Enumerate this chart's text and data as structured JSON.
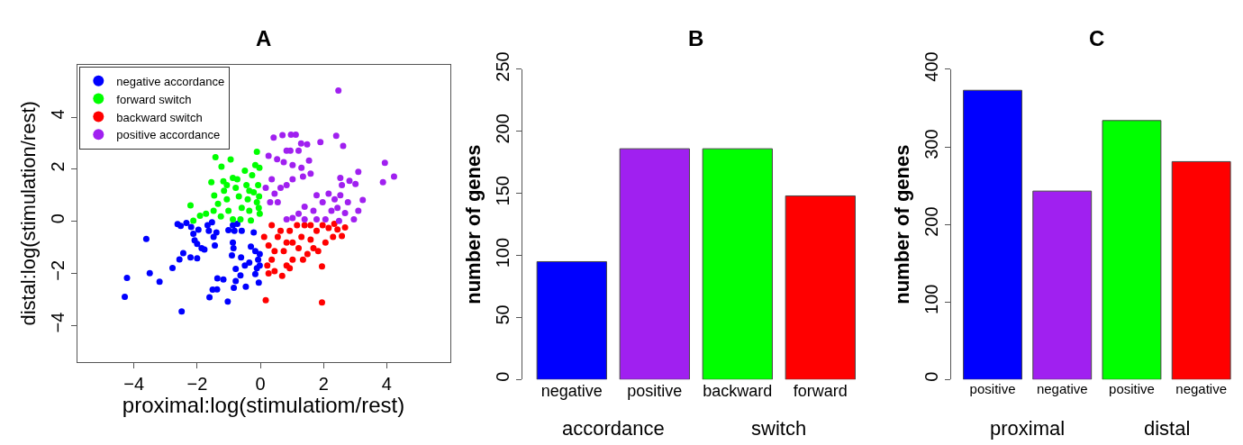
{
  "chart_data": [
    {
      "type": "scatter",
      "title": "A",
      "xlabel": "proximal:log(stimulatiom/rest)",
      "ylabel": "distal:log(stimulation/rest)",
      "xlim": [
        -5.8,
        6.0
      ],
      "ylim": [
        -5.4,
        6.0
      ],
      "xticks": [
        -4,
        -2,
        0,
        2,
        4
      ],
      "yticks": [
        -4,
        -2,
        0,
        2,
        4
      ],
      "legend": "top left",
      "marker": "circle",
      "series": [
        {
          "name": "negative accordance",
          "color": "#0000ff",
          "x": [
            -4.29,
            -4.22,
            -3.61,
            -3.5,
            -3.19,
            -2.78,
            -2.56,
            -2.49,
            -2.44,
            -2.21,
            -2.0,
            -2.62,
            -2.52,
            -2.34,
            -2.19,
            -2.12,
            -2.08,
            -1.96,
            -2.0,
            -1.86,
            -1.77,
            -1.67,
            -1.63,
            -1.53,
            -1.48,
            -1.44,
            -1.39,
            -1.61,
            -1.51,
            -1.37,
            -1.36,
            -1.17,
            -1.03,
            -1.01,
            -0.87,
            -0.82,
            -0.73,
            -0.59,
            -0.87,
            -0.85,
            -0.9,
            -0.78,
            -0.63,
            -0.78,
            -0.84,
            -0.46,
            -0.61,
            -0.49,
            -0.35,
            -0.3,
            -0.21,
            -0.16,
            -0.11,
            -0.07,
            -0.16,
            -0.05,
            -0.02,
            -0.02
          ],
          "values": [
            -2.91,
            -2.18,
            -0.68,
            -2.0,
            -2.33,
            -1.8,
            -1.47,
            -3.47,
            -1.23,
            -1.39,
            -1.43,
            -0.11,
            -0.18,
            -0.07,
            -0.22,
            -0.48,
            -0.73,
            -0.33,
            -0.87,
            -1.04,
            -1.09,
            -0.15,
            -0.37,
            -0.04,
            -0.6,
            -0.93,
            -0.43,
            -2.92,
            -2.63,
            -2.62,
            -2.2,
            -2.24,
            -3.09,
            -0.34,
            -0.15,
            -0.37,
            -0.1,
            -0.37,
            -0.82,
            -1.04,
            -1.31,
            -1.83,
            -2.08,
            -2.3,
            -2.56,
            -2.52,
            -1.39,
            -1.7,
            -1.59,
            -0.98,
            -0.43,
            -1.15,
            -1.81,
            -1.48,
            -2.03,
            -2.36,
            -1.7,
            -1.26
          ]
        },
        {
          "name": "forward switch",
          "color": "#00ff00",
          "x": [
            -2.21,
            -2.12,
            -1.91,
            -1.72,
            -1.55,
            -1.42,
            -1.23,
            -1.17,
            -0.94,
            -1.46,
            -1.34,
            -1.15,
            -1.06,
            -1.01,
            -0.87,
            -0.78,
            -0.68,
            -0.59,
            -0.63,
            -0.49,
            -0.44,
            -0.4,
            -0.35,
            -0.3,
            -0.26,
            -0.21,
            -0.16,
            -0.11,
            -0.11,
            -0.07,
            -0.02,
            -0.03,
            -0.04,
            -0.05,
            -0.87,
            -1.25,
            -1.48,
            -0.73,
            -0.35,
            -1.06
          ],
          "values": [
            0.61,
            0.02,
            0.21,
            0.29,
            1.5,
            2.46,
            2.1,
            1.53,
            2.37,
            0.99,
            0.67,
            1.17,
            0.84,
            0.4,
            1.66,
            1.28,
            0.95,
            0.51,
            0.07,
            1.94,
            1.39,
            0.84,
            0.4,
            0.03,
            1.77,
            1.11,
            2.16,
            2.67,
            0.73,
            1.39,
            0.29,
            2.05,
            0.95,
            0.51,
            0.07,
            0.18,
            0.4,
            1.61,
            1.17,
            1.39
          ]
        },
        {
          "name": "backward switch",
          "color": "#ff0000",
          "x": [
            0.17,
            1.95,
            0.12,
            0.26,
            0.36,
            0.45,
            0.69,
            0.83,
            0.55,
            0.74,
            0.93,
            1.02,
            1.21,
            1.3,
            1.4,
            1.49,
            1.59,
            1.78,
            1.83,
            1.95,
            2.06,
            2.16,
            2.3,
            2.44,
            2.58,
            2.68,
            1.97,
            1.59,
            1.02,
            0.36,
            0.22,
            0.45,
            0.83,
            1.16,
            1.35,
            1.68,
            0.64,
            0.93,
            0.26,
            2.34
          ],
          "values": [
            -3.04,
            -3.12,
            -0.6,
            -0.93,
            -1.48,
            -1.92,
            -2.1,
            -1.7,
            -0.6,
            -1.15,
            -0.37,
            -1.48,
            -1.04,
            -0.6,
            -0.15,
            -1.26,
            -0.71,
            -0.37,
            -1.15,
            -1.74,
            -0.82,
            -0.26,
            -0.6,
            -0.32,
            -0.57,
            -0.24,
            -0.15,
            -0.15,
            -0.82,
            -0.15,
            -1.7,
            -1.15,
            -0.82,
            -0.15,
            -1.48,
            -1.04,
            -0.37,
            -1.81,
            -2.01,
            -0.1
          ]
        },
        {
          "name": "positive accordance",
          "color": "#a020f0",
          "x": [
            2.47,
            0.42,
            0.7,
            0.97,
            1.12,
            1.29,
            1.48,
            1.9,
            2.4,
            2.62,
            0.26,
            0.53,
            0.83,
            0.95,
            1.21,
            0.74,
            1.02,
            1.3,
            1.54,
            1.59,
            1.35,
            0.17,
            0.36,
            0.45,
            0.64,
            0.83,
            1.02,
            0.55,
            0.31,
            3.94,
            4.23,
            3.88,
            3.1,
            2.82,
            2.53,
            2.58,
            3.24,
            2.77,
            3.1,
            2.96,
            2.68,
            2.44,
            2.35,
            2.16,
            1.97,
            1.78,
            1.68,
            1.4,
            1.21,
            1.02,
            0.83,
            1.4,
            1.78,
            2.06,
            2.49,
            2.25,
            2.53,
            3.01
          ],
          "values": [
            5.02,
            3.21,
            3.31,
            3.33,
            3.33,
            2.99,
            2.95,
            3.04,
            3.28,
            2.89,
            2.51,
            2.38,
            2.71,
            2.71,
            2.71,
            2.27,
            2.16,
            2.05,
            2.33,
            1.83,
            1.72,
            1.28,
            1.61,
            1.06,
            1.28,
            1.39,
            1.61,
            0.73,
            0.73,
            2.24,
            1.72,
            1.5,
            1.9,
            1.55,
            1.66,
            1.39,
            0.82,
            0.73,
            0.4,
            0.07,
            0.31,
            0.51,
            0.84,
            1.06,
            0.73,
            1.0,
            0.4,
            0.56,
            0.29,
            0.12,
            0.07,
            0.07,
            0.07,
            0.07,
            0.01,
            0.4,
            1.0,
            1.43
          ]
        }
      ]
    },
    {
      "type": "bar",
      "title": "B",
      "ylabel": "number of genes",
      "categories": [
        "negative",
        "positive",
        "backward",
        "forward"
      ],
      "values": [
        95,
        186,
        186,
        148
      ],
      "colors": [
        "#0000ff",
        "#a020f0",
        "#00ff00",
        "#ff0000"
      ],
      "ylim": [
        0,
        250
      ],
      "yticks": [
        0,
        50,
        100,
        150,
        200,
        250
      ],
      "annotations": [
        "accordance",
        "switch"
      ]
    },
    {
      "type": "bar",
      "title": "C",
      "ylabel": "number of genes",
      "categories": [
        "positive",
        "negative",
        "positive",
        "negative"
      ],
      "values": [
        373,
        243,
        334,
        281
      ],
      "colors": [
        "#0000ff",
        "#a020f0",
        "#00ff00",
        "#ff0000"
      ],
      "ylim": [
        0,
        400
      ],
      "yticks": [
        0,
        100,
        200,
        300,
        400
      ],
      "annotations": [
        "proximal",
        "distal"
      ]
    }
  ]
}
